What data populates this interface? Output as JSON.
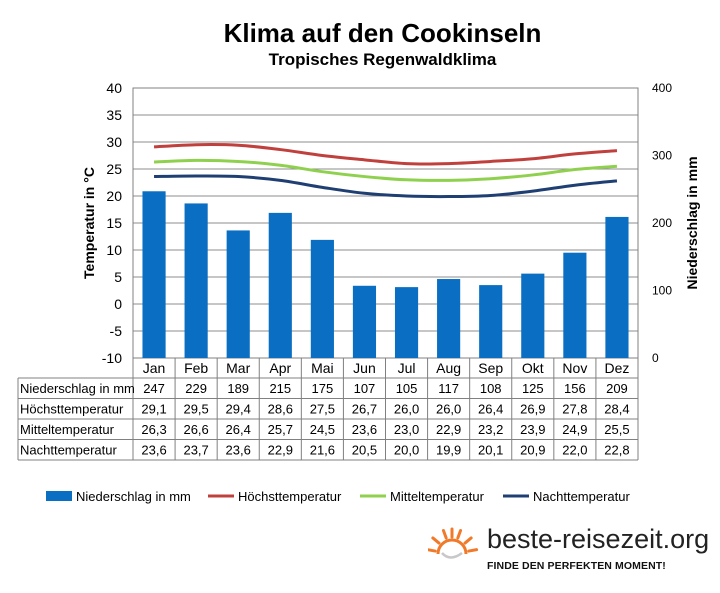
{
  "title": "Klima auf den Cookinseln",
  "subtitle": "Tropisches Regenwaldklima",
  "chart_data": {
    "type": "bar+line",
    "categories": [
      "Jan",
      "Feb",
      "Mar",
      "Apr",
      "Mai",
      "Jun",
      "Jul",
      "Aug",
      "Sep",
      "Okt",
      "Nov",
      "Dez"
    ],
    "left_axis": {
      "label": "Temperatur in °C",
      "min": -10,
      "max": 40,
      "step": 5,
      "ticks": [
        "-10",
        "-5",
        "0",
        "5",
        "10",
        "15",
        "20",
        "25",
        "30",
        "35",
        "40"
      ]
    },
    "right_axis": {
      "label": "Niederschlag in mm",
      "min": 0,
      "max": 400,
      "step": 100,
      "ticks": [
        "0",
        "100",
        "200",
        "300",
        "400"
      ]
    },
    "series": [
      {
        "name": "Niederschlag in mm",
        "type": "bar",
        "axis": "right",
        "color": "#0a6fc2",
        "values": [
          247,
          229,
          189,
          215,
          175,
          107,
          105,
          117,
          108,
          125,
          156,
          209
        ],
        "labels": [
          "247",
          "229",
          "189",
          "215",
          "175",
          "107",
          "105",
          "117",
          "108",
          "125",
          "156",
          "209"
        ]
      },
      {
        "name": "Höchsttemperatur",
        "type": "line",
        "axis": "left",
        "color": "#c0403d",
        "values": [
          29.1,
          29.5,
          29.4,
          28.6,
          27.5,
          26.7,
          26.0,
          26.0,
          26.4,
          26.9,
          27.8,
          28.4
        ],
        "labels": [
          "29,1",
          "29,5",
          "29,4",
          "28,6",
          "27,5",
          "26,7",
          "26,0",
          "26,0",
          "26,4",
          "26,9",
          "27,8",
          "28,4"
        ]
      },
      {
        "name": "Mitteltemperatur",
        "type": "line",
        "axis": "left",
        "color": "#8fd14f",
        "values": [
          26.3,
          26.6,
          26.4,
          25.7,
          24.5,
          23.6,
          23.0,
          22.9,
          23.2,
          23.9,
          24.9,
          25.5
        ],
        "labels": [
          "26,3",
          "26,6",
          "26,4",
          "25,7",
          "24,5",
          "23,6",
          "23,0",
          "22,9",
          "23,2",
          "23,9",
          "24,9",
          "25,5"
        ]
      },
      {
        "name": "Nachttemperatur",
        "type": "line",
        "axis": "left",
        "color": "#1f3f73",
        "values": [
          23.6,
          23.7,
          23.6,
          22.9,
          21.6,
          20.5,
          20.0,
          19.9,
          20.1,
          20.9,
          22.0,
          22.8
        ],
        "labels": [
          "23,6",
          "23,7",
          "23,6",
          "22,9",
          "21,6",
          "20,5",
          "20,0",
          "19,9",
          "20,1",
          "20,9",
          "22,0",
          "22,8"
        ]
      }
    ],
    "grid": true,
    "legend_position": "bottom",
    "data_table": true
  },
  "logo": {
    "text": "beste-reisezeit.org",
    "slogan": "FINDE DEN PERFEKTEN MOMENT!",
    "sun_color": "#f07a2a"
  }
}
